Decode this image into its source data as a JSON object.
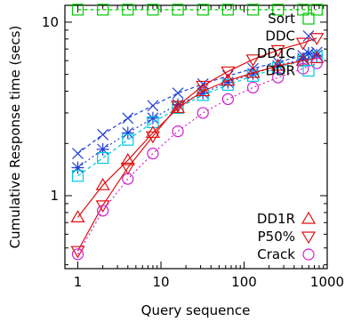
{
  "chart_data": {
    "type": "line",
    "title": "",
    "xlabel": "Query sequence",
    "ylabel": "Cumulative Response time (secs)",
    "xscale": "log",
    "yscale": "log",
    "xlim": [
      0.7,
      1000
    ],
    "ylim": [
      0.38,
      12.5
    ],
    "grid": false,
    "legend_placement": "top-right (first four) and bottom-right (last three)",
    "x_ticks": [
      {
        "value": 1,
        "label": "1"
      },
      {
        "value": 10,
        "label": "10"
      },
      {
        "value": 100,
        "label": "100"
      },
      {
        "value": 1000,
        "label": "1000"
      }
    ],
    "y_ticks": [
      {
        "value": 1,
        "label": "1"
      },
      {
        "value": 10,
        "label": "10"
      }
    ],
    "x": [
      1,
      2,
      4,
      8,
      16,
      32,
      64,
      128,
      256,
      512,
      750
    ],
    "series": [
      {
        "name": "Sort",
        "color": "#00c800",
        "marker": "square",
        "dash": "4,3",
        "values": [
          11.8,
          11.8,
          11.8,
          11.8,
          11.8,
          11.8,
          11.8,
          11.8,
          11.8,
          11.8,
          11.8
        ]
      },
      {
        "name": "DDC",
        "color": "#1f3fd6",
        "marker": "x",
        "dash": "4,3",
        "values": [
          1.75,
          2.25,
          2.8,
          3.3,
          3.9,
          4.4,
          4.9,
          5.4,
          5.9,
          6.4,
          6.7
        ]
      },
      {
        "name": "DD1C",
        "color": "#1f3fd6",
        "marker": "asterisk",
        "dash": "2,3",
        "values": [
          1.45,
          1.85,
          2.3,
          2.8,
          3.35,
          3.9,
          4.5,
          5.05,
          5.6,
          6.15,
          6.45
        ]
      },
      {
        "name": "DDR",
        "color": "#00c8e0",
        "marker": "square",
        "dash": "4,3",
        "values": [
          1.3,
          1.65,
          2.1,
          2.65,
          3.2,
          3.8,
          4.35,
          4.9,
          5.45,
          6.0,
          6.3
        ]
      },
      {
        "name": "DD1R",
        "color": "#e01010",
        "marker": "triangle-up",
        "dash": "",
        "values": [
          0.75,
          1.15,
          1.6,
          2.3,
          3.2,
          4.0,
          4.6,
          5.1,
          5.6,
          6.0,
          6.2
        ]
      },
      {
        "name": "P50%",
        "color": "#e01010",
        "marker": "triangle-down",
        "dash": "",
        "values": [
          0.48,
          0.88,
          1.45,
          2.2,
          3.3,
          4.3,
          5.2,
          6.1,
          6.9,
          7.6,
          8.1
        ]
      },
      {
        "name": "Crack",
        "color": "#d020d0",
        "marker": "circle",
        "dash": "2,3",
        "values": [
          0.46,
          0.82,
          1.25,
          1.75,
          2.35,
          3.0,
          3.6,
          4.2,
          4.8,
          5.4,
          5.8
        ]
      }
    ],
    "legend_top": [
      "Sort",
      "DDC",
      "DD1C",
      "DDR"
    ],
    "legend_bottom": [
      "DD1R",
      "P50%",
      "Crack"
    ]
  }
}
